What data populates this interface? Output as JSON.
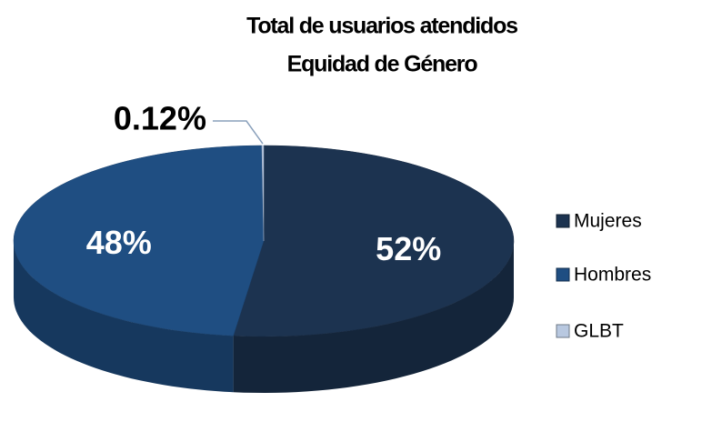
{
  "chart_data": {
    "type": "pie",
    "title": "Total de usuarios atendidos",
    "subtitle": "Equidad de Género",
    "categories": [
      "Mujeres",
      "Hombres",
      "GLBT"
    ],
    "values": [
      52,
      48,
      0.12
    ],
    "value_labels": [
      "52%",
      "48%",
      "0.12%"
    ],
    "colors": [
      "#1c3350",
      "#1f4e82",
      "#b8c8e0"
    ],
    "legend": "right"
  }
}
